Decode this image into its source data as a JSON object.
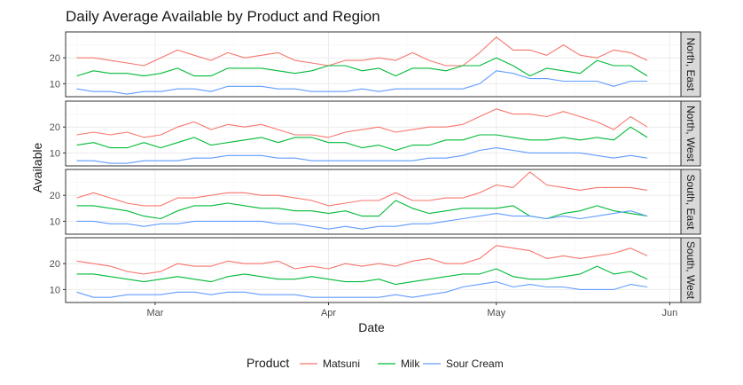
{
  "chart_data": {
    "type": "line",
    "title": "Daily Average Available by Product and Region",
    "xlabel": "Date",
    "ylabel": "Available",
    "x_ticks": [
      "Mar",
      "Apr",
      "May",
      "Jun"
    ],
    "y_ticks": [
      10,
      20
    ],
    "ylim": [
      5,
      30
    ],
    "grid": true,
    "legend": {
      "title": "Product",
      "position": "bottom"
    },
    "series_styles": [
      {
        "name": "Matsuni",
        "color": "#f8766d"
      },
      {
        "name": "Milk",
        "color": "#00ba38"
      },
      {
        "name": "Sour Cream",
        "color": "#619cff"
      }
    ],
    "dates": [
      "2023-02-15",
      "2023-02-18",
      "2023-02-21",
      "2023-02-24",
      "2023-02-27",
      "2023-03-02",
      "2023-03-05",
      "2023-03-08",
      "2023-03-11",
      "2023-03-14",
      "2023-03-17",
      "2023-03-20",
      "2023-03-23",
      "2023-03-26",
      "2023-03-29",
      "2023-04-01",
      "2023-04-04",
      "2023-04-07",
      "2023-04-10",
      "2023-04-13",
      "2023-04-16",
      "2023-04-19",
      "2023-04-22",
      "2023-04-25",
      "2023-04-28",
      "2023-05-01",
      "2023-05-04",
      "2023-05-07",
      "2023-05-10",
      "2023-05-13",
      "2023-05-16",
      "2023-05-19",
      "2023-05-22",
      "2023-05-25",
      "2023-05-28"
    ],
    "panels": [
      {
        "label": "North, East",
        "series": [
          {
            "name": "Matsuni",
            "values": [
              20,
              20,
              19,
              18,
              17,
              20,
              23,
              21,
              19,
              22,
              20,
              21,
              22,
              19,
              18,
              17,
              19,
              19,
              20,
              19,
              22,
              19,
              17,
              17,
              22,
              28,
              23,
              23,
              21,
              25,
              21,
              20,
              23,
              22,
              19
            ]
          },
          {
            "name": "Milk",
            "values": [
              13,
              15,
              14,
              14,
              13,
              14,
              16,
              13,
              13,
              16,
              16,
              16,
              15,
              14,
              15,
              17,
              17,
              15,
              16,
              13,
              16,
              16,
              15,
              17,
              17,
              20,
              17,
              13,
              16,
              15,
              14,
              19,
              17,
              17,
              13
            ]
          },
          {
            "name": "Sour Cream",
            "values": [
              8,
              7,
              7,
              6,
              7,
              7,
              8,
              8,
              7,
              9,
              9,
              9,
              8,
              8,
              7,
              7,
              7,
              8,
              7,
              8,
              8,
              8,
              8,
              8,
              10,
              15,
              14,
              12,
              12,
              11,
              11,
              11,
              9,
              11,
              11
            ]
          }
        ]
      },
      {
        "label": "North, West",
        "series": [
          {
            "name": "Matsuni",
            "values": [
              17,
              18,
              17,
              18,
              16,
              17,
              20,
              22,
              19,
              21,
              20,
              21,
              19,
              17,
              17,
              16,
              18,
              19,
              20,
              18,
              19,
              20,
              20,
              21,
              24,
              27,
              25,
              25,
              24,
              26,
              24,
              22,
              19,
              24,
              20
            ]
          },
          {
            "name": "Milk",
            "values": [
              13,
              14,
              12,
              12,
              14,
              12,
              14,
              16,
              13,
              14,
              15,
              16,
              14,
              16,
              16,
              14,
              14,
              12,
              13,
              11,
              13,
              13,
              15,
              15,
              17,
              17,
              16,
              15,
              15,
              16,
              15,
              16,
              15,
              20,
              16
            ]
          },
          {
            "name": "Sour Cream",
            "values": [
              7,
              7,
              6,
              6,
              7,
              7,
              7,
              8,
              8,
              9,
              9,
              9,
              8,
              8,
              7,
              7,
              7,
              7,
              7,
              7,
              7,
              8,
              8,
              9,
              11,
              12,
              11,
              10,
              10,
              10,
              10,
              9,
              8,
              9,
              8
            ]
          }
        ]
      },
      {
        "label": "South, East",
        "series": [
          {
            "name": "Matsuni",
            "values": [
              19,
              21,
              19,
              17,
              16,
              16,
              19,
              19,
              20,
              21,
              21,
              20,
              20,
              19,
              18,
              16,
              17,
              18,
              18,
              21,
              18,
              18,
              19,
              19,
              21,
              24,
              23,
              29,
              24,
              23,
              22,
              23,
              23,
              23,
              22
            ]
          },
          {
            "name": "Milk",
            "values": [
              16,
              16,
              15,
              14,
              12,
              11,
              14,
              16,
              16,
              17,
              16,
              15,
              15,
              14,
              14,
              13,
              14,
              12,
              12,
              18,
              15,
              13,
              14,
              15,
              15,
              15,
              16,
              12,
              11,
              13,
              14,
              16,
              14,
              13,
              12
            ]
          },
          {
            "name": "Sour Cream",
            "values": [
              10,
              10,
              9,
              9,
              8,
              9,
              9,
              10,
              10,
              10,
              10,
              10,
              9,
              9,
              8,
              7,
              8,
              7,
              8,
              8,
              9,
              9,
              10,
              11,
              12,
              13,
              12,
              12,
              11,
              12,
              11,
              12,
              13,
              14,
              12
            ]
          }
        ]
      },
      {
        "label": "South, West",
        "series": [
          {
            "name": "Matsuni",
            "values": [
              21,
              20,
              19,
              17,
              16,
              17,
              20,
              19,
              19,
              21,
              20,
              20,
              21,
              18,
              19,
              18,
              20,
              19,
              20,
              19,
              21,
              22,
              20,
              20,
              22,
              27,
              26,
              25,
              22,
              23,
              22,
              23,
              24,
              26,
              23
            ]
          },
          {
            "name": "Milk",
            "values": [
              16,
              16,
              15,
              14,
              13,
              14,
              15,
              14,
              13,
              15,
              16,
              15,
              14,
              14,
              15,
              14,
              13,
              13,
              14,
              12,
              13,
              14,
              15,
              16,
              16,
              18,
              15,
              14,
              14,
              15,
              16,
              19,
              16,
              17,
              14
            ]
          },
          {
            "name": "Sour Cream",
            "values": [
              9,
              7,
              7,
              8,
              8,
              8,
              9,
              9,
              8,
              9,
              9,
              8,
              8,
              8,
              7,
              7,
              7,
              7,
              7,
              8,
              7,
              8,
              9,
              11,
              12,
              13,
              11,
              12,
              11,
              11,
              10,
              10,
              10,
              12,
              11
            ]
          }
        ]
      }
    ]
  }
}
